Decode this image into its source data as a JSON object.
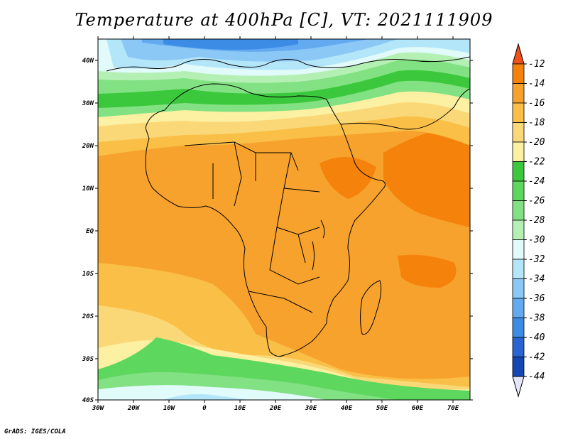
{
  "title": "Temperature at 400hPa [C], VT: 2021111909",
  "credit": "GrADS: IGES/COLA",
  "axes": {
    "lat_ticks": [
      "40N",
      "30N",
      "20N",
      "10N",
      "EQ",
      "10S",
      "20S",
      "30S",
      "40S"
    ],
    "lon_ticks": [
      "30W",
      "20W",
      "10W",
      "0",
      "10E",
      "20E",
      "30E",
      "40E",
      "50E",
      "60E",
      "70E"
    ]
  },
  "colorbar": {
    "labels": [
      "-12",
      "-14",
      "-16",
      "-18",
      "-20",
      "-22",
      "-24",
      "-26",
      "-28",
      "-30",
      "-32",
      "-34",
      "-36",
      "-38",
      "-40",
      "-42",
      "-44"
    ],
    "colors": [
      "#f0501e",
      "#f5820a",
      "#f7a22d",
      "#f9bf47",
      "#fad878",
      "#fcf0a2",
      "#3cc83c",
      "#5ed75e",
      "#82e182",
      "#b4f0b4",
      "#e1fafa",
      "#b4e6fa",
      "#8cc8f5",
      "#64aaf0",
      "#3c8ce6",
      "#2864d2",
      "#1446b4",
      "#0a1e82"
    ]
  },
  "map_colors": {
    "ocean_sw": "#f9bf47",
    "tropics": "#f7a22d",
    "hot": "#f5820a",
    "warm": "#fad878",
    "mild": "#fcf0a2",
    "green": "#3cc83c",
    "light_green": "#82e182",
    "cyan": "#e1fafa",
    "blue": "#8cc8f5",
    "deep_blue": "#3c8ce6"
  }
}
